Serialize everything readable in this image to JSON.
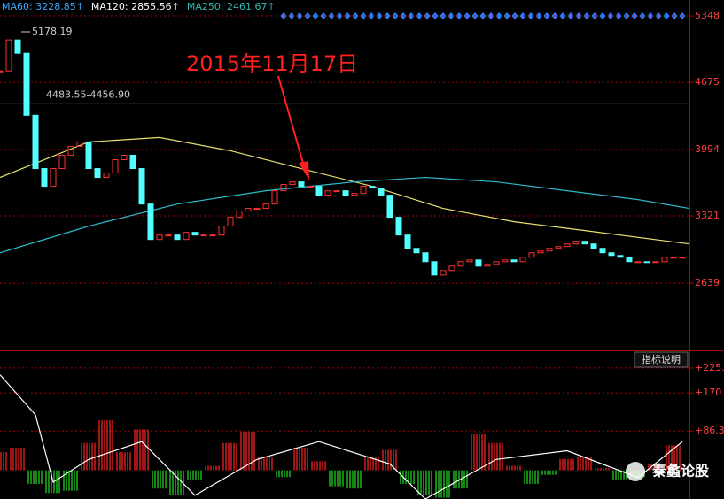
{
  "chart_data": [
    {
      "type": "candlestick",
      "header": [
        {
          "text": "MA60: 3228.85↑",
          "color": "#3fa9ff"
        },
        {
          "text": "MA120: 2855.56↑",
          "color": "#ffffff"
        },
        {
          "text": "MA250: 2461.67↑",
          "color": "#2fb8b0"
        }
      ],
      "annotation": "2015年11月17日",
      "high_label": "5178.19",
      "range_label": "4483.55-4456.90",
      "ref_level": 4456.9,
      "xlim": [
        0,
        77.8
      ],
      "ylim": [
        1958,
        5510
      ],
      "yticks": [
        5348,
        4675,
        3994,
        3321,
        2639
      ],
      "up_color": "#ff3030",
      "down_color": "#54ffff",
      "values": [
        4790,
        5105,
        4970,
        4341,
        3801,
        3621,
        3801,
        3936,
        4026,
        4071,
        3801,
        3711,
        3756,
        3891,
        3936,
        3801,
        3441,
        3082,
        3127,
        3127,
        3082,
        3154,
        3127,
        3127,
        3127,
        3217,
        3307,
        3370,
        3397,
        3397,
        3441,
        3576,
        3639,
        3666,
        3621,
        3621,
        3531,
        3576,
        3576,
        3531,
        3549,
        3621,
        3603,
        3531,
        3307,
        3127,
        2992,
        2947,
        2857,
        2722,
        2767,
        2812,
        2857,
        2875,
        2812,
        2830,
        2857,
        2875,
        2857,
        2902,
        2947,
        2965,
        2992,
        3010,
        3037,
        3064,
        3037,
        2992,
        2947,
        2920,
        2902,
        2857,
        2857,
        2848,
        2857,
        2902,
        2902,
        2902
      ],
      "lines": [
        {
          "color": "#e8e070",
          "x": [
            0,
            10,
            18,
            26,
            34,
            42,
            50,
            58,
            66,
            77.8
          ],
          "values": [
            3711,
            4071,
            4116,
            3981,
            3801,
            3621,
            3397,
            3262,
            3172,
            3037
          ]
        },
        {
          "color": "#2fb8d0",
          "x": [
            0,
            10,
            20,
            30,
            40,
            48,
            56,
            64,
            72,
            77.8
          ],
          "values": [
            2947,
            3217,
            3441,
            3576,
            3666,
            3711,
            3666,
            3576,
            3486,
            3397
          ]
        }
      ]
    },
    {
      "type": "macd",
      "button": "指标说明",
      "ylim": [
        -63,
        256
      ],
      "yticks": [
        {
          "value": 225,
          "label": "+225."
        },
        {
          "value": 170,
          "label": "+170."
        },
        {
          "value": 86.3,
          "label": "+86.3"
        }
      ],
      "up_color": "#e02020",
      "down_color": "#20c020",
      "x": [
        0,
        2,
        4,
        6,
        8,
        10,
        12,
        14,
        16,
        18,
        20,
        22,
        24,
        26,
        28,
        30,
        32,
        34,
        36,
        38,
        40,
        42,
        44,
        46,
        48,
        50,
        52,
        54,
        56,
        58,
        60,
        62,
        64,
        66,
        68,
        70,
        72,
        74,
        76
      ],
      "values": [
        40,
        50,
        -30,
        -50,
        -45,
        60,
        110,
        40,
        90,
        -40,
        -55,
        -20,
        10,
        60,
        85,
        30,
        -15,
        50,
        20,
        -35,
        -40,
        30,
        45,
        -30,
        -55,
        -60,
        -40,
        80,
        60,
        10,
        -30,
        -10,
        25,
        30,
        5,
        -20,
        -15,
        15,
        55
      ],
      "lines": [
        {
          "color": "#ffffff",
          "x": [
            0,
            4,
            6,
            10,
            16,
            22,
            29,
            36,
            44,
            48,
            56,
            64,
            72,
            77
          ],
          "values": [
            210,
            122,
            -26,
            24,
            63,
            -55,
            24,
            63,
            14,
            -63,
            24,
            43,
            -16,
            63
          ]
        }
      ]
    }
  ],
  "watermark": "秦蠡论股"
}
